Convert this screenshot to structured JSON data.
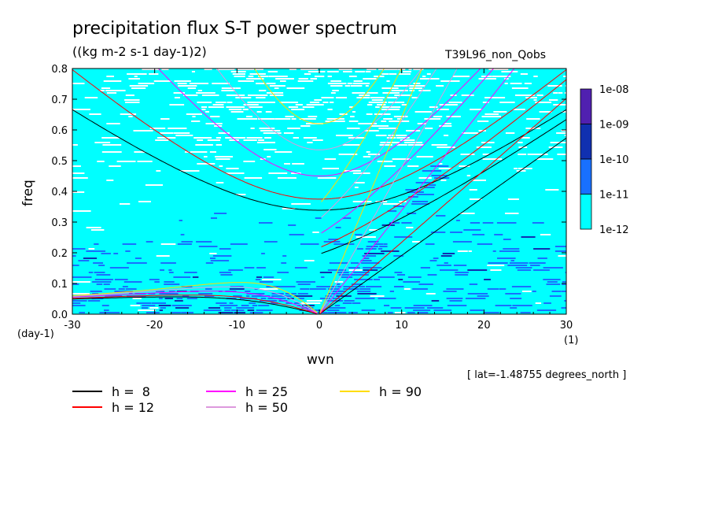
{
  "header": {
    "title": "precipitation flux S-T power spectrum",
    "units": "((kg m-2 s-1 day-1)2)",
    "run_name": "T39L96_non_Qobs",
    "lat_note": "[ lat=-1.48755 degrees_north ]"
  },
  "chart_data": {
    "type": "heatmap",
    "title": "precipitation flux S-T power spectrum",
    "xlabel": "wvn",
    "ylabel": "freq",
    "x_unit": "(1)",
    "y_unit": "(day-1)",
    "xlim": [
      -30,
      30
    ],
    "ylim": [
      0,
      0.8
    ],
    "x_ticks": [
      "-30",
      "-20",
      "-10",
      "0",
      "10",
      "20",
      "30"
    ],
    "y_ticks": [
      "0.0",
      "0.1",
      "0.2",
      "0.3",
      "0.4",
      "0.5",
      "0.6",
      "0.7",
      "0.8"
    ],
    "colorbar": {
      "labels": [
        "1e-08",
        "1e-09",
        "1e-10",
        "1e-11",
        "1e-12"
      ],
      "colors": [
        "#5020b0",
        "#1030b0",
        "#1870ff",
        "#00ffff"
      ]
    },
    "dispersion_curves": [
      {
        "name": "h =  8",
        "h": 8,
        "color": "#000000"
      },
      {
        "name": "h = 12",
        "h": 12,
        "color": "#ff0000"
      },
      {
        "name": "h = 25",
        "h": 25,
        "color": "#ff00ff"
      },
      {
        "name": "h = 50",
        "h": 50,
        "color": "#dd99dd"
      },
      {
        "name": "h = 90",
        "h": 90,
        "color": "#ffdd00"
      }
    ]
  }
}
